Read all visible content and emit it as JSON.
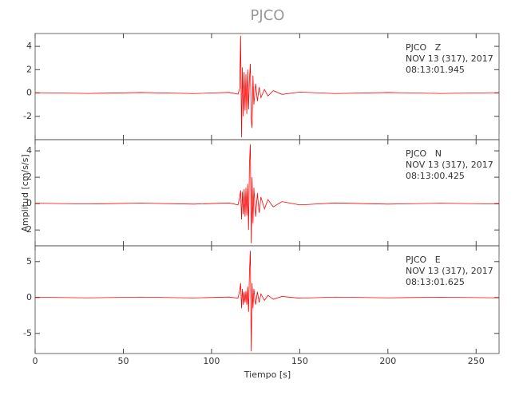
{
  "chart_data": {
    "type": "line",
    "title": "PJCO",
    "x_label": "Tiempo [s]",
    "y_label": "Amplitud [cm/s/s]",
    "xlim": [
      0,
      263
    ],
    "xticks": [
      0,
      50,
      100,
      150,
      200,
      250
    ],
    "color": "#ff0000",
    "panels": [
      {
        "annotation": [
          "PJCO   Z",
          "NOV 13 (317), 2017",
          "08:13:01.945"
        ],
        "ylim": [
          -4,
          5.1
        ],
        "yticks": [
          -2,
          0,
          2,
          4
        ],
        "x": [
          0,
          30,
          60,
          90,
          110,
          115,
          116,
          116.5,
          117,
          117.5,
          118,
          118.5,
          119,
          119.5,
          120,
          120.5,
          121,
          121.5,
          122,
          122.5,
          123,
          123.5,
          124,
          125,
          126,
          127,
          128,
          130,
          132,
          135,
          140,
          150,
          170,
          200,
          230,
          263
        ],
        "values": [
          0.03,
          -0.04,
          0.04,
          -0.05,
          0.05,
          -0.1,
          0.4,
          4.9,
          -3.8,
          2.2,
          -2.0,
          1.8,
          -1.5,
          1.6,
          -1.8,
          2.0,
          -1.4,
          1.2,
          2.5,
          -2.2,
          -3.0,
          1.5,
          -1.0,
          0.8,
          -0.7,
          0.5,
          -0.4,
          0.3,
          -0.25,
          0.2,
          -0.12,
          0.08,
          -0.05,
          0.04,
          -0.04,
          0.03
        ]
      },
      {
        "annotation": [
          "PJCO   N",
          "NOV 13 (317), 2017",
          "08:13:00.425"
        ],
        "ylim": [
          -3.2,
          4.85
        ],
        "yticks": [
          -2,
          0,
          2,
          4
        ],
        "x": [
          0,
          30,
          60,
          90,
          110,
          115,
          116,
          116.5,
          117,
          117.5,
          118,
          118.5,
          119,
          119.5,
          120,
          120.5,
          121,
          121.5,
          122,
          122.5,
          123,
          123.5,
          124,
          125,
          126,
          127,
          128,
          130,
          132,
          135,
          140,
          150,
          170,
          200,
          230,
          263
        ],
        "values": [
          0.03,
          -0.03,
          0.04,
          -0.04,
          0.05,
          -0.1,
          0.5,
          1.0,
          -1.2,
          0.9,
          -0.8,
          1.1,
          -1.0,
          1.2,
          -0.9,
          1.5,
          -2.0,
          3.0,
          4.5,
          -3.0,
          2.0,
          -1.5,
          1.2,
          -1.0,
          0.8,
          -0.7,
          0.5,
          -0.4,
          0.3,
          -0.25,
          0.15,
          -0.1,
          0.05,
          -0.04,
          0.03,
          -0.03
        ]
      },
      {
        "annotation": [
          "PJCO   E",
          "NOV 13 (317), 2017",
          "08:13:01.625"
        ],
        "ylim": [
          -7.8,
          7.2
        ],
        "yticks": [
          -5,
          0,
          5
        ],
        "x": [
          0,
          30,
          60,
          90,
          110,
          115,
          116,
          116.5,
          117,
          117.5,
          118,
          118.5,
          119,
          119.5,
          120,
          120.5,
          121,
          121.5,
          122,
          122.5,
          123,
          123.5,
          124,
          125,
          126,
          127,
          128,
          130,
          132,
          135,
          140,
          150,
          170,
          200,
          230,
          263
        ],
        "values": [
          0.05,
          -0.05,
          0.06,
          -0.06,
          0.07,
          -0.1,
          1.0,
          2.0,
          -1.5,
          1.2,
          -1.0,
          0.8,
          -0.7,
          0.9,
          -1.0,
          1.5,
          -2.0,
          3.5,
          6.5,
          -7.5,
          2.0,
          -1.5,
          1.2,
          -1.0,
          0.8,
          -0.7,
          0.5,
          -0.4,
          0.3,
          -0.25,
          0.15,
          -0.1,
          0.06,
          -0.05,
          0.05,
          -0.05
        ]
      }
    ]
  }
}
